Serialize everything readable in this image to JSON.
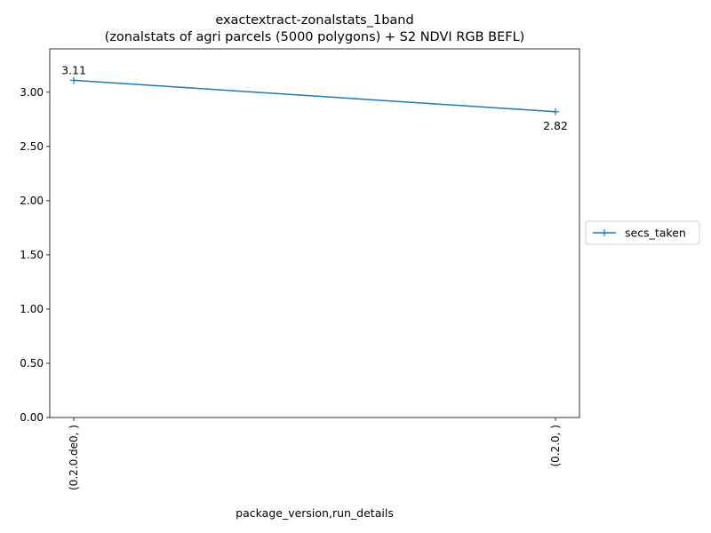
{
  "chart_data": {
    "type": "line",
    "title": "exactextract-zonalstats_1band",
    "subtitle": "(zonalstats of agri parcels (5000 polygons) + S2 NDVI RGB BEFL)",
    "xlabel": "package_version,run_details",
    "ylabel": "",
    "categories": [
      "(0.2.0.de0, )",
      "(0.2.0, )"
    ],
    "series": [
      {
        "name": "secs_taken",
        "values": [
          3.11,
          2.82
        ],
        "color": "#1f77b4",
        "marker": "plus"
      }
    ],
    "data_labels": [
      "3.11",
      "2.82"
    ],
    "ylim": [
      0,
      3.4
    ],
    "yticks": [
      0.0,
      0.5,
      1.0,
      1.5,
      2.0,
      2.5,
      3.0
    ],
    "ytick_labels": [
      "0.00",
      "0.50",
      "1.00",
      "1.50",
      "2.00",
      "2.50",
      "3.00"
    ],
    "x_tick_rotation": "vertical",
    "grid": false,
    "legend_position": "outside-right"
  }
}
